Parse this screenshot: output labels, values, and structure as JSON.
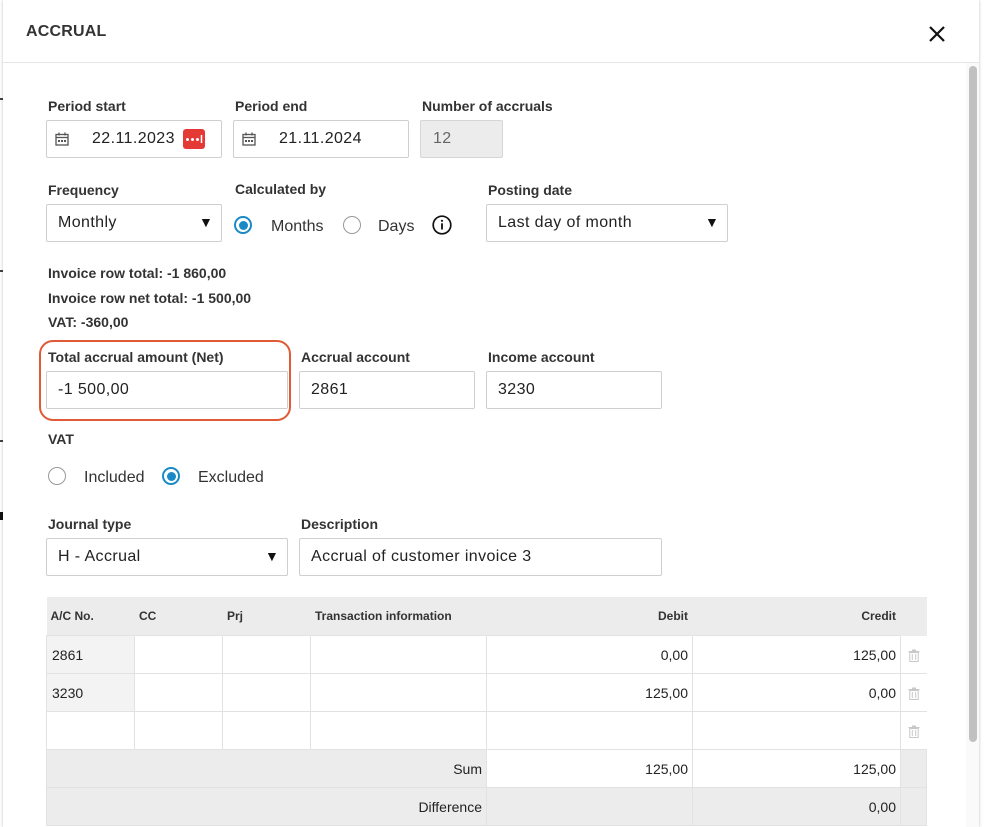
{
  "dialog": {
    "title": "ACCRUAL"
  },
  "period": {
    "start_label": "Period start",
    "start_value": "22.11.2023",
    "end_label": "Period end",
    "end_value": "21.11.2024",
    "count_label": "Number of accruals",
    "count_value": "12"
  },
  "frequency": {
    "label": "Frequency",
    "value": "Monthly"
  },
  "calculated_by": {
    "label": "Calculated by",
    "options": [
      "Months",
      "Days"
    ],
    "selected": "Months"
  },
  "posting_date": {
    "label": "Posting date",
    "value": "Last day of month"
  },
  "summary": {
    "row_total": "Invoice row total: -1 860,00",
    "row_net_total": "Invoice row net total: -1 500,00",
    "vat": "VAT: -360,00"
  },
  "total_accrual": {
    "label": "Total accrual amount (Net)",
    "value": "-1 500,00"
  },
  "accrual_account": {
    "label": "Accrual account",
    "value": "2861"
  },
  "income_account": {
    "label": "Income account",
    "value": "3230"
  },
  "vat_option": {
    "label": "VAT",
    "options": [
      "Included",
      "Excluded"
    ],
    "selected": "Excluded"
  },
  "journal_type": {
    "label": "Journal type",
    "value": "H - Accrual"
  },
  "description": {
    "label": "Description",
    "value": "Accrual of customer invoice 3"
  },
  "grid": {
    "columns": [
      "A/C No.",
      "CC",
      "Prj",
      "Transaction information",
      "Debit",
      "Credit"
    ],
    "rows": [
      {
        "ac": "2861",
        "cc": "",
        "prj": "",
        "info": "",
        "debit": "0,00",
        "credit": "125,00"
      },
      {
        "ac": "3230",
        "cc": "",
        "prj": "",
        "info": "",
        "debit": "125,00",
        "credit": "0,00"
      },
      {
        "ac": "",
        "cc": "",
        "prj": "",
        "info": "",
        "debit": "",
        "credit": ""
      }
    ],
    "sum_label": "Sum",
    "sum_debit": "125,00",
    "sum_credit": "125,00",
    "difference_label": "Difference",
    "difference_value": "0,00"
  },
  "colors": {
    "accent": "#1a8ac6",
    "highlight": "#e05a35",
    "more_button": "#e53935"
  },
  "icons": [
    "close-icon",
    "calendar-icon",
    "more-icon",
    "info-icon",
    "trash-icon",
    "caret-down-icon"
  ]
}
